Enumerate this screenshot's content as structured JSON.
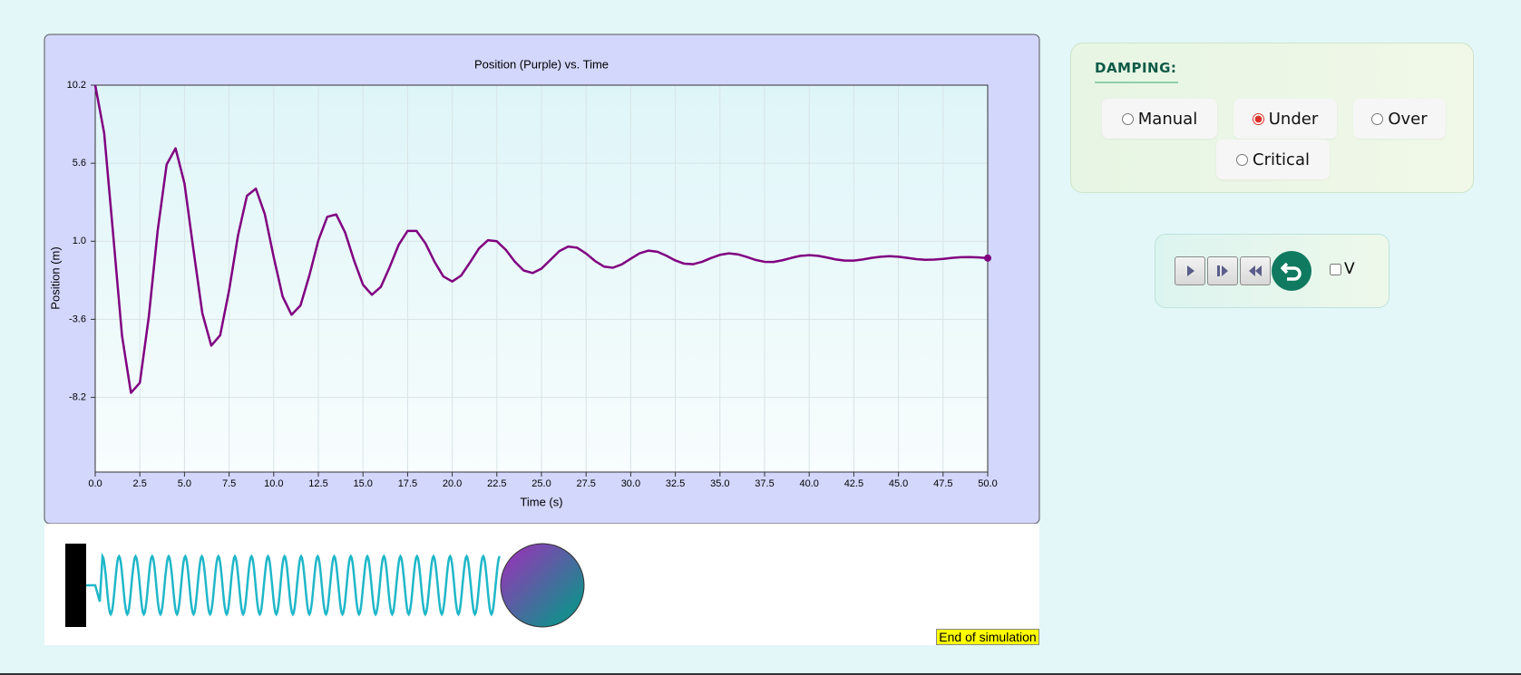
{
  "chart_data": {
    "type": "line",
    "title": "Position (Purple) vs. Time",
    "x_label": "Time (s)",
    "y_label": "Position (m)",
    "color": "#800080",
    "grid": true,
    "xlim": [
      0,
      50
    ],
    "ylim": [
      -12.6,
      10.2
    ],
    "xticks": [
      {
        "value": 0,
        "label": "0.0"
      },
      2.5,
      {
        "value": 5,
        "label": "5.0"
      },
      7.5,
      {
        "value": 10,
        "label": "10.0"
      },
      12.5,
      {
        "value": 15,
        "label": "15.0"
      },
      17.5,
      {
        "value": 20,
        "label": "20.0"
      },
      22.5,
      {
        "value": 25,
        "label": "25.0"
      },
      27.5,
      {
        "value": 30,
        "label": "30.0"
      },
      32.5,
      {
        "value": 35,
        "label": "35.0"
      },
      37.5,
      {
        "value": 40,
        "label": "40.0"
      },
      42.5,
      {
        "value": 45,
        "label": "45.0"
      },
      47.5,
      {
        "value": 50,
        "label": "50.0"
      }
    ],
    "yticks": [
      10.2,
      5.6,
      {
        "value": 1,
        "label": "1.0"
      },
      -3.6,
      -8.2
    ],
    "x": [
      0,
      0.5,
      1,
      1.5,
      2,
      2.5,
      3,
      3.5,
      4,
      4.5,
      5,
      5.5,
      6,
      6.5,
      7,
      7.5,
      8,
      8.5,
      9,
      9.5,
      10,
      10.5,
      11,
      11.5,
      12,
      12.5,
      13,
      13.5,
      14,
      14.5,
      15,
      15.5,
      16,
      16.5,
      17,
      17.5,
      18,
      18.5,
      19,
      19.5,
      20,
      20.5,
      21,
      21.5,
      22,
      22.5,
      23,
      23.5,
      24,
      24.5,
      25,
      25.5,
      26,
      26.5,
      27,
      27.5,
      28,
      28.5,
      29,
      29.5,
      30,
      30.5,
      31,
      31.5,
      32,
      32.5,
      33,
      33.5,
      34,
      34.5,
      35,
      35.5,
      36,
      36.5,
      37,
      37.5,
      38,
      38.5,
      39,
      39.5,
      40,
      40.5,
      41,
      41.5,
      42,
      42.5,
      43,
      43.5,
      44,
      44.5,
      45,
      45.5,
      46,
      46.5,
      47,
      47.5,
      48,
      48.5,
      49,
      49.5,
      50
    ],
    "values": [
      10.2,
      7.38,
      1.46,
      -4.56,
      -7.93,
      -7.34,
      -3.46,
      1.64,
      5.52,
      6.48,
      4.41,
      0.52,
      -3.24,
      -5.15,
      -4.54,
      -1.89,
      1.35,
      3.68,
      4.1,
      2.6,
      0.06,
      -2.26,
      -3.33,
      -2.78,
      -1.0,
      1.05,
      2.44,
      2.58,
      1.52,
      -0.13,
      -1.56,
      -2.15,
      -1.69,
      -0.51,
      0.79,
      1.61,
      1.61,
      0.88,
      -0.19,
      -1.07,
      -1.37,
      -1.02,
      -0.24,
      0.58,
      1.06,
      1.0,
      0.5,
      -0.19,
      -0.72,
      -0.87,
      -0.61,
      -0.1,
      0.42,
      0.69,
      0.62,
      0.28,
      -0.16,
      -0.49,
      -0.56,
      -0.36,
      -0.03,
      0.29,
      0.45,
      0.38,
      0.15,
      -0.13,
      -0.32,
      -0.35,
      -0.21,
      0.01,
      0.2,
      0.29,
      0.23,
      0.08,
      -0.1,
      -0.21,
      -0.22,
      -0.12,
      0.02,
      0.14,
      0.18,
      0.14,
      0.04,
      -0.07,
      -0.14,
      -0.14,
      -0.07,
      0.02,
      0.09,
      0.12,
      0.09,
      0.02,
      -0.05,
      -0.09,
      -0.08,
      -0.04,
      0.02,
      0.06,
      0.07,
      0.05,
      0.01
    ]
  },
  "damping": {
    "label": "DAMPING:",
    "options": [
      {
        "label": "Manual",
        "checked": false
      },
      {
        "label": "Under",
        "checked": true
      },
      {
        "label": "Over",
        "checked": false
      },
      {
        "label": "Critical",
        "checked": false
      }
    ]
  },
  "velocity_toggle": {
    "label": "V",
    "checked": false
  },
  "status": "End of simulation"
}
